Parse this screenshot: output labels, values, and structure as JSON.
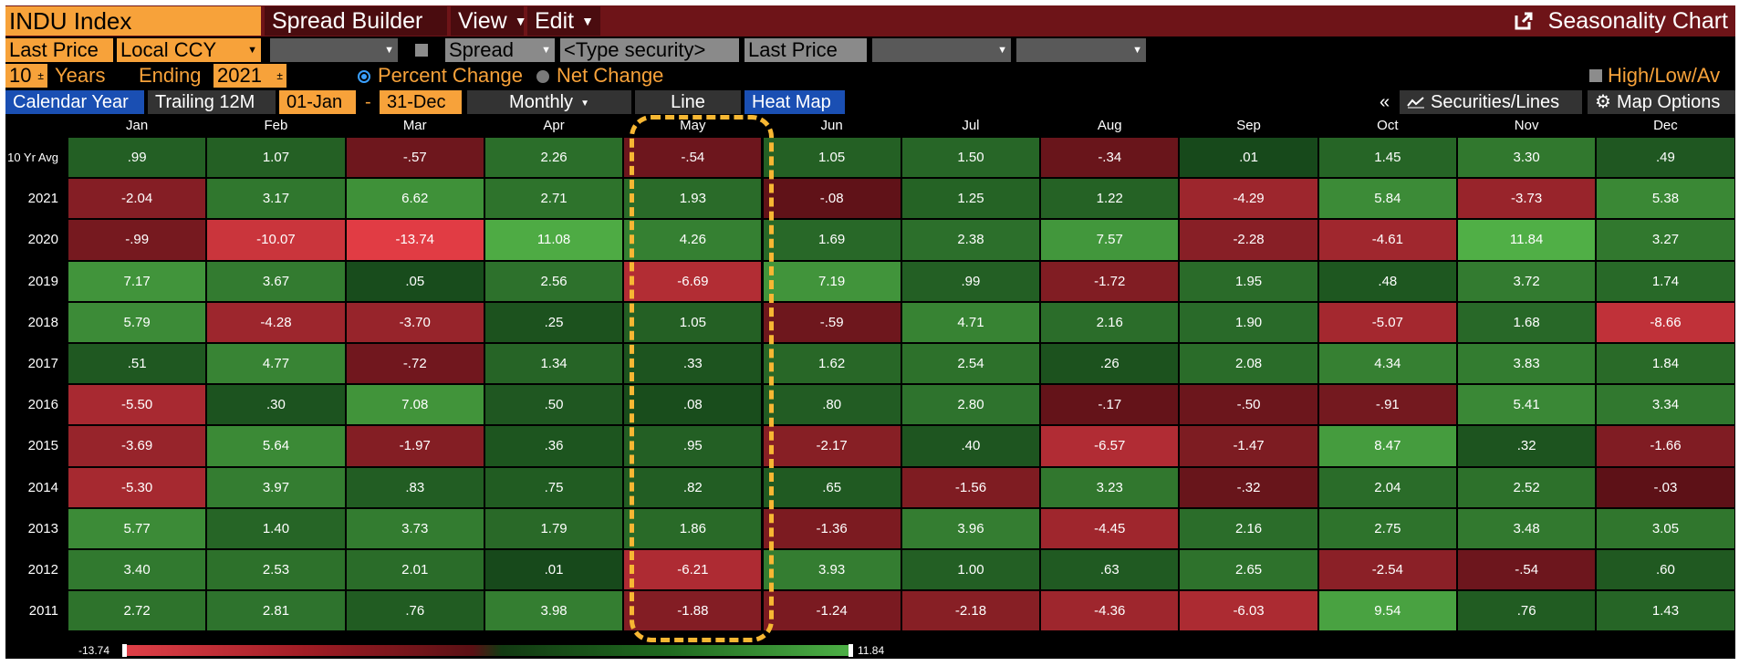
{
  "window": {
    "ticker": "INDU Index",
    "menus": [
      "Spread Builder",
      "View",
      "Edit"
    ],
    "chart_title": "Seasonality Chart"
  },
  "toolbar_row2": {
    "price_field": "Last Price",
    "currency": "Local CCY",
    "spread_label": "Spread",
    "security_placeholder": "<Type security>",
    "price_field_2": "Last Price"
  },
  "toolbar_row3": {
    "years": "10",
    "years_label": "Years",
    "ending_label": "Ending",
    "end_year": "2021",
    "option_percent": "Percent Change",
    "option_net": "Net Change",
    "selected_option": "Percent Change",
    "high_low_label": "High/Low/Av"
  },
  "toolbar_row4": {
    "calendar_year": "Calendar Year",
    "trailing": "Trailing 12M",
    "start_date": "01-Jan",
    "dash": "-",
    "end_date": "31-Dec",
    "frequency": "Monthly",
    "view_line": "Line",
    "view_heatmap": "Heat Map",
    "collapse_glyph": "«",
    "securities_lines": "Securities/Lines",
    "map_options": "Map Options"
  },
  "colors": {
    "orange": "#f7a23a",
    "title_bar": "#6e1418",
    "highlight": "#f7b733",
    "negative_max": "#e04048",
    "negative_min": "#5a1014",
    "positive_min": "#123a12",
    "positive_max": "#4caf45"
  },
  "icons": {
    "launch": "external-link-icon",
    "securities": "chart-line-icon",
    "options": "gear-icon"
  },
  "chart_data": {
    "type": "heatmap",
    "columns": [
      "Jan",
      "Feb",
      "Mar",
      "Apr",
      "May",
      "Jun",
      "Jul",
      "Aug",
      "Sep",
      "Oct",
      "Nov",
      "Dec"
    ],
    "rows": [
      {
        "label": "10 Yr Avg",
        "values": [
          ".99",
          "1.07",
          "-.57",
          "2.26",
          "-.54",
          "1.05",
          "1.50",
          "-.34",
          ".01",
          "1.45",
          "3.30",
          ".49"
        ]
      },
      {
        "label": "2021",
        "values": [
          "-2.04",
          "3.17",
          "6.62",
          "2.71",
          "1.93",
          "-.08",
          "1.25",
          "1.22",
          "-4.29",
          "5.84",
          "-3.73",
          "5.38"
        ]
      },
      {
        "label": "2020",
        "values": [
          "-.99",
          "-10.07",
          "-13.74",
          "11.08",
          "4.26",
          "1.69",
          "2.38",
          "7.57",
          "-2.28",
          "-4.61",
          "11.84",
          "3.27"
        ]
      },
      {
        "label": "2019",
        "values": [
          "7.17",
          "3.67",
          ".05",
          "2.56",
          "-6.69",
          "7.19",
          ".99",
          "-1.72",
          "1.95",
          ".48",
          "3.72",
          "1.74"
        ]
      },
      {
        "label": "2018",
        "values": [
          "5.79",
          "-4.28",
          "-3.70",
          ".25",
          "1.05",
          "-.59",
          "4.71",
          "2.16",
          "1.90",
          "-5.07",
          "1.68",
          "-8.66"
        ]
      },
      {
        "label": "2017",
        "values": [
          ".51",
          "4.77",
          "-.72",
          "1.34",
          ".33",
          "1.62",
          "2.54",
          ".26",
          "2.08",
          "4.34",
          "3.83",
          "1.84"
        ]
      },
      {
        "label": "2016",
        "values": [
          "-5.50",
          ".30",
          "7.08",
          ".50",
          ".08",
          ".80",
          "2.80",
          "-.17",
          "-.50",
          "-.91",
          "5.41",
          "3.34"
        ]
      },
      {
        "label": "2015",
        "values": [
          "-3.69",
          "5.64",
          "-1.97",
          ".36",
          ".95",
          "-2.17",
          ".40",
          "-6.57",
          "-1.47",
          "8.47",
          ".32",
          "-1.66"
        ]
      },
      {
        "label": "2014",
        "values": [
          "-5.30",
          "3.97",
          ".83",
          ".75",
          ".82",
          ".65",
          "-1.56",
          "3.23",
          "-.32",
          "2.04",
          "2.52",
          "-.03"
        ]
      },
      {
        "label": "2013",
        "values": [
          "5.77",
          "1.40",
          "3.73",
          "1.79",
          "1.86",
          "-1.36",
          "3.96",
          "-4.45",
          "2.16",
          "2.75",
          "3.48",
          "3.05"
        ]
      },
      {
        "label": "2012",
        "values": [
          "3.40",
          "2.53",
          "2.01",
          ".01",
          "-6.21",
          "3.93",
          "1.00",
          ".63",
          "2.65",
          "-2.54",
          "-.54",
          ".60"
        ]
      },
      {
        "label": "2011",
        "values": [
          "2.72",
          "2.81",
          ".76",
          "3.98",
          "-1.88",
          "-1.24",
          "-2.18",
          "-4.36",
          "-6.03",
          "9.54",
          ".76",
          "1.43"
        ]
      }
    ],
    "scale_min": "-13.74",
    "scale_max": "11.84",
    "highlighted_column": "May"
  }
}
